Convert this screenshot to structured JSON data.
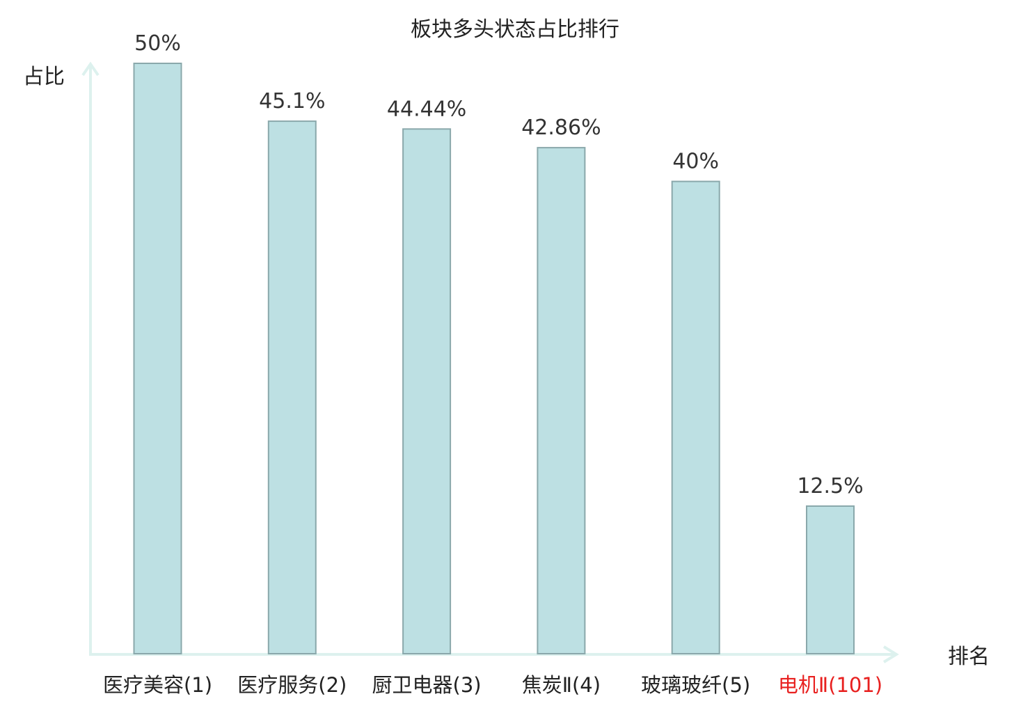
{
  "chart_data": {
    "type": "bar",
    "title": "板块多头状态占比排行",
    "xlabel": "排名",
    "ylabel": "占比",
    "categories": [
      "医疗美容(1)",
      "医疗服务(2)",
      "厨卫电器(3)",
      "焦炭Ⅱ(4)",
      "玻璃玻纤(5)",
      "电机Ⅱ(101)"
    ],
    "values": [
      50,
      45.1,
      44.44,
      42.86,
      40,
      12.5
    ],
    "value_labels": [
      "50%",
      "45.1%",
      "44.44%",
      "42.86%",
      "40%",
      "12.5%"
    ],
    "ylim": [
      0,
      50
    ],
    "grid": false,
    "legend": "none",
    "highlight_index": 5,
    "colors": {
      "bar_fill": "#bde0e3",
      "bar_stroke": "#8aa8ab",
      "axis": "#ddf1ee",
      "text": "#222222",
      "highlight_text": "#e8201f"
    }
  }
}
